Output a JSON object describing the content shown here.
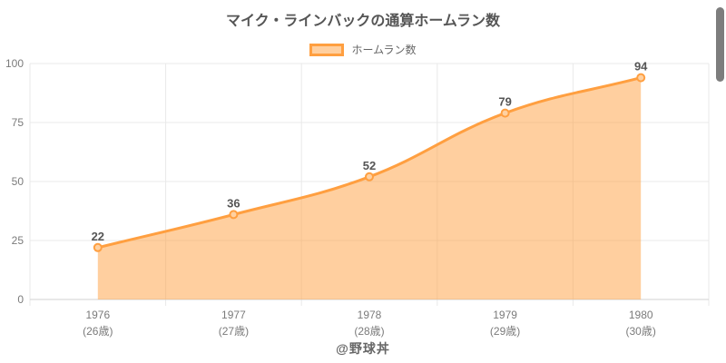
{
  "header": {
    "title": "マイク・ラインバックの通算ホームラン数"
  },
  "legend": {
    "label": "ホームラン数"
  },
  "footer": {
    "credit": "@野球丼"
  },
  "colors": {
    "line": "#ff9f40",
    "fill": "rgba(255,159,64,0.5)",
    "point_fill": "#ffd1a1",
    "point_border": "#ff9f40",
    "grid": "#e9e9e9",
    "axis_line": "#d2d2d2",
    "tick_text": "#7b7b7b",
    "data_label": "#555555",
    "scrollbar": "#7d7d7d"
  },
  "chart_data": {
    "type": "area",
    "title": "マイク・ラインバックの通算ホームラン数",
    "categories": [
      "1976",
      "1977",
      "1978",
      "1979",
      "1980"
    ],
    "category_sublabels": [
      "(26歳)",
      "(27歳)",
      "(28歳)",
      "(29歳)",
      "(30歳)"
    ],
    "series": [
      {
        "name": "ホームラン数",
        "values": [
          22,
          36,
          52,
          79,
          94
        ]
      }
    ],
    "yticks": [
      0,
      25,
      50,
      75,
      100
    ],
    "ylim": [
      0,
      100
    ],
    "grid": true,
    "legend_position": "top",
    "line_tension": 0.4,
    "point_labels_shown": true
  },
  "scrollbar": {
    "visible": true
  }
}
